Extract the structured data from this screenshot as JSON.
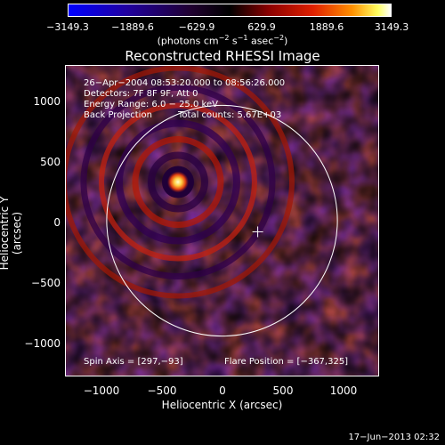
{
  "colorbar": {
    "ticks": [
      "−3149.3",
      "−1889.6",
      "−629.9",
      "629.9",
      "1889.6",
      "3149.3"
    ],
    "unit_pre": "(photons cm",
    "unit_sup1": "−2",
    "unit_mid": " s",
    "unit_sup2": "−1",
    "unit_mid2": " asec",
    "unit_sup3": "−2",
    "unit_post": ")"
  },
  "chart_data": {
    "type": "heatmap",
    "title": "Reconstructed RHESSI Image",
    "xlabel": "Heliocentric X (arcsec)",
    "ylabel": "Heliocentric Y (arcsec)",
    "xlim": [
      -1300,
      1300
    ],
    "ylim": [
      -1300,
      1300
    ],
    "xticks": [
      -1000,
      -500,
      0,
      500,
      1000
    ],
    "yticks": [
      -1000,
      -500,
      0,
      500,
      1000
    ],
    "xtick_labels": [
      "−1000",
      "−500",
      "0",
      "500",
      "1000"
    ],
    "ytick_labels": [
      "−1000",
      "−500",
      "0",
      "500",
      "1000"
    ],
    "color_range": [
      -3149.3,
      3149.3
    ],
    "solar_disk_radius": 960,
    "flare_source": {
      "x": -367,
      "y": 325,
      "peak": 3149.3
    },
    "spin_axis_marker": {
      "x": 297,
      "y": -93
    },
    "annotations": {
      "line1": "26−Apr−2004 08:53:20.000 to 08:56:26.000",
      "line2": "Detectors: 7F 8F 9F, Att 0",
      "line3": "Energy Range: 6.0 − 25.0 keV",
      "line4_a": "Back Projection",
      "line4_b": "Total counts: 5.67E+03",
      "spin_axis": "Spin Axis = [297,−93]",
      "flare_position": "Flare Position = [−367,325]"
    }
  },
  "datestamp": "17−Jun−2013 02:32",
  "colors": {
    "background": "#000000",
    "foreground": "#ffffff"
  }
}
